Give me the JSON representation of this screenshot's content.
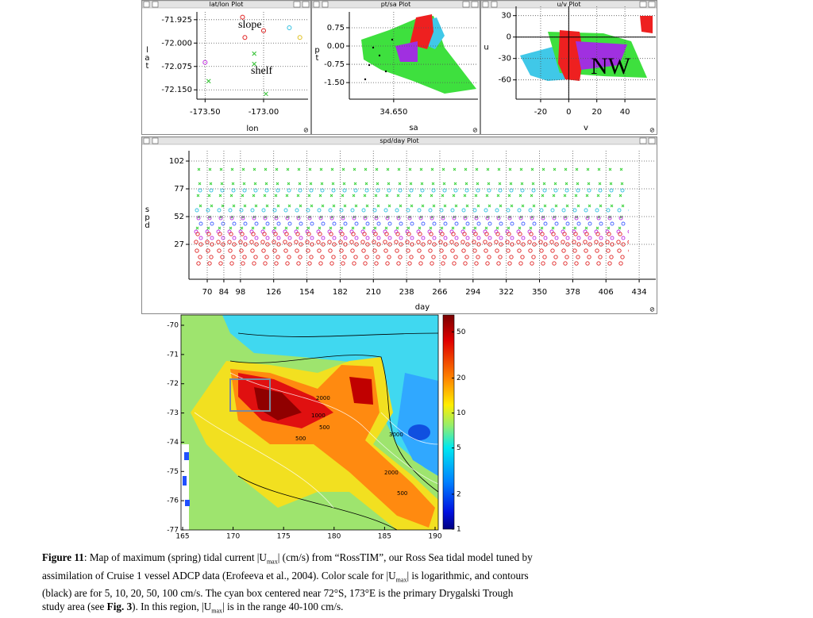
{
  "panels": [
    {
      "type": "scatter",
      "title": "lat/lon Plot",
      "xlabel": "lon",
      "ylabel": "lat",
      "xlim": [
        -173.57,
        -172.62
      ],
      "ylim": [
        -72.18,
        -71.9
      ],
      "xticks": [
        {
          "value": -173.5,
          "label": "-173.50"
        },
        {
          "value": -173.0,
          "label": "-173.00"
        }
      ],
      "yticks": [
        -71.925,
        {
          "value": -72.0,
          "label": "-72.000"
        },
        -72.075,
        {
          "value": -72.15,
          "label": "-72.150"
        }
      ],
      "grid": true,
      "annotations": [
        {
          "text": "slope",
          "color": "#e02020"
        },
        {
          "text": "shelf",
          "color": "#30c030"
        }
      ],
      "series": [
        {
          "color": "#e02020",
          "marker": "o",
          "x": [
            -173.18,
            -173.16,
            -173.0
          ],
          "y": [
            -71.917,
            -71.982,
            -71.96
          ]
        },
        {
          "color": "#c030e0",
          "marker": "o",
          "x": [
            -173.5
          ],
          "y": [
            -72.062
          ]
        },
        {
          "color": "#30c030",
          "marker": "x",
          "x": [
            -173.47,
            -173.08,
            -173.08,
            -172.98
          ],
          "y": [
            -72.122,
            -72.034,
            -72.067,
            -72.163
          ]
        },
        {
          "color": "#30c0e0",
          "marker": "o",
          "x": [
            -172.78
          ],
          "y": [
            -71.951
          ]
        },
        {
          "color": "#e0c020",
          "marker": "o",
          "x": [
            -172.69
          ],
          "y": [
            -71.982
          ]
        }
      ]
    },
    {
      "type": "scatter",
      "title": "pt/sa Plot",
      "xlabel": "sa",
      "ylabel": "pt",
      "xlim": [
        34.55,
        34.84
      ],
      "ylim": [
        -2.18,
        1.4
      ],
      "xticks": [
        {
          "value": 34.65,
          "label": "34.650"
        }
      ],
      "yticks": [
        0.75,
        {
          "value": 0,
          "label": "0.00"
        },
        -0.75,
        {
          "value": -1.5,
          "label": "-1.50"
        }
      ],
      "grid": true
    },
    {
      "type": "scatter",
      "title": "u/v Plot",
      "xlabel": "v",
      "ylabel": "u",
      "xlim": [
        -37.5,
        62
      ],
      "ylim": [
        -87,
        43
      ],
      "xticks": [
        -20,
        0,
        20,
        40
      ],
      "yticks": [
        30,
        0,
        -30,
        -60
      ],
      "grid": true,
      "annotations": [
        {
          "text": "NW",
          "color": "#000000"
        }
      ]
    },
    {
      "type": "scatter",
      "title": "spd/day Plot",
      "xlabel": "day",
      "ylabel": "spd",
      "xlim": [
        54.6,
        448
      ],
      "ylim": [
        -4.4,
        111.3
      ],
      "xticks": [
        70,
        84,
        98,
        126,
        154,
        182,
        210,
        238,
        266,
        294,
        322,
        350,
        378,
        406,
        434
      ],
      "yticks": [
        102,
        77,
        52,
        27
      ],
      "grid": true
    }
  ],
  "map": {
    "xlim": [
      165,
      190
    ],
    "ylim": [
      -70,
      -77
    ],
    "xticks": [
      165,
      170,
      175,
      180,
      185,
      190
    ],
    "yticks": [
      -70,
      -71,
      -72,
      -73,
      -74,
      -75,
      -76,
      -77
    ],
    "colorbar": {
      "log": true,
      "lim": [
        1,
        70
      ],
      "ticks": [
        50,
        20,
        10,
        5,
        2,
        1
      ]
    },
    "contour_labels": [
      "2000",
      "1000",
      "500",
      "3000",
      "2000",
      "500",
      "500"
    ]
  },
  "caption": {
    "lines": [
      [
        "Figure 11",
        ": Map of maximum (spring) tidal current |U",
        "max",
        "| (cm/s) from “RossTIM”, our Ross Sea tidal model tuned by"
      ],
      [
        "assimilation of Cruise 1 vessel ADCP data (Erofeeva et al., 2004). Color scale for |U",
        "max",
        "| is logarithmic, and contours"
      ],
      [
        "(black) are for 5, 10, 20, 50, 100 cm/s.  The cyan box centered near 72°S, 173°E is the primary Drygalski Trough"
      ],
      [
        "study area (see ",
        "Fig. 3",
        ").  In this region, |U",
        "max",
        "| is in the range 40-100 cm/s."
      ]
    ]
  }
}
